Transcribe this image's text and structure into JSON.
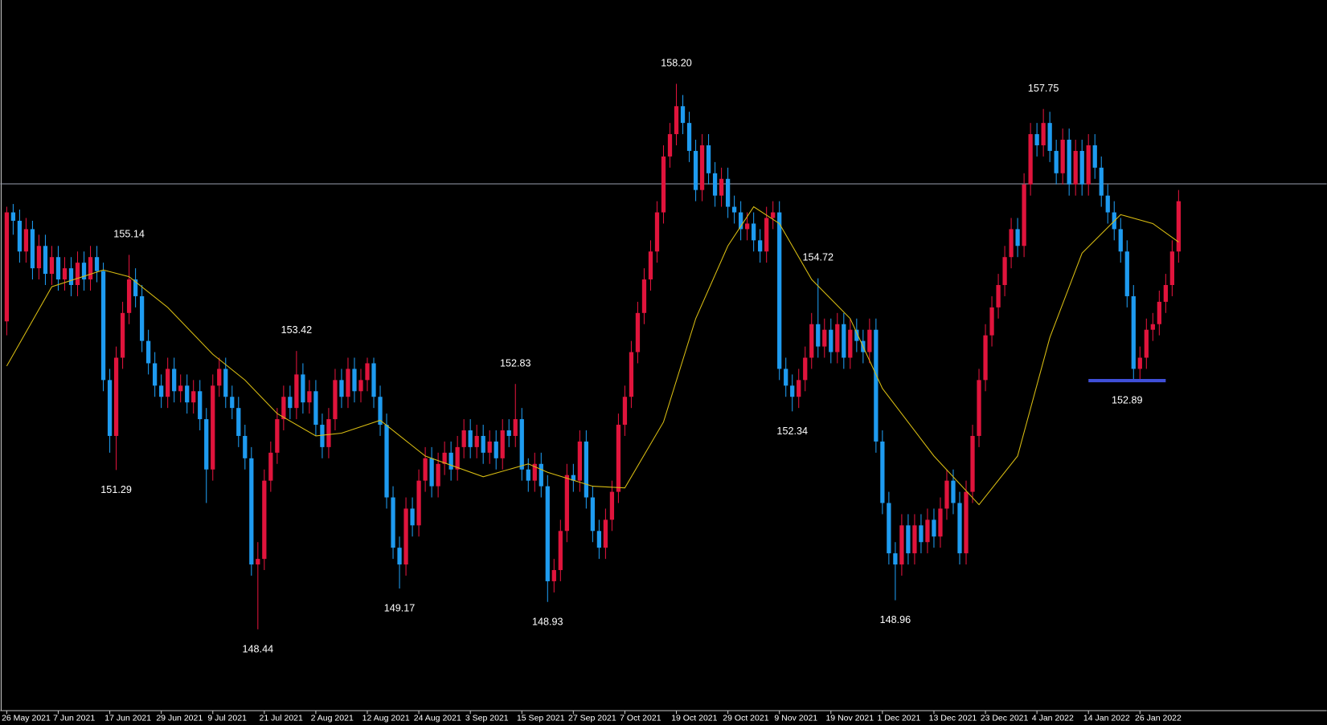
{
  "chart_data": {
    "type": "candlestick",
    "xlim": [
      -1,
      205
    ],
    "ylim": [
      147.0,
      159.7
    ],
    "xticks": [
      {
        "value": 0,
        "label": "26 May 2021"
      },
      {
        "value": 8,
        "label": "7 Jun 2021"
      },
      {
        "value": 16,
        "label": "17 Jun 2021"
      },
      {
        "value": 24,
        "label": "29 Jun 2021"
      },
      {
        "value": 32,
        "label": "9 Jul 2021"
      },
      {
        "value": 40,
        "label": "21 Jul 2021"
      },
      {
        "value": 48,
        "label": "2 Aug 2021"
      },
      {
        "value": 56,
        "label": "12 Aug 2021"
      },
      {
        "value": 64,
        "label": "24 Aug 2021"
      },
      {
        "value": 72,
        "label": "3 Sep 2021"
      },
      {
        "value": 80,
        "label": "15 Sep 2021"
      },
      {
        "value": 88,
        "label": "27 Sep 2021"
      },
      {
        "value": 96,
        "label": "7 Oct 2021"
      },
      {
        "value": 104,
        "label": "19 Oct 2021"
      },
      {
        "value": 112,
        "label": "29 Oct 2021"
      },
      {
        "value": 120,
        "label": "9 Nov 2021"
      },
      {
        "value": 128,
        "label": "19 Nov 2021"
      },
      {
        "value": 136,
        "label": "1 Dec 2021"
      },
      {
        "value": 144,
        "label": "13 Dec 2021"
      },
      {
        "value": 152,
        "label": "23 Dec 2021"
      },
      {
        "value": 160,
        "label": "4 Jan 2022"
      },
      {
        "value": 168,
        "label": "14 Jan 2022"
      },
      {
        "value": 176,
        "label": "26 Jan 2022"
      }
    ],
    "up_color": "#e0143c",
    "down_color": "#1e9bf0",
    "open": [
      153.95,
      155.9,
      155.75,
      155.2,
      155.6,
      154.9,
      155.3,
      154.8,
      155.1,
      154.7,
      154.9,
      154.6,
      155.0,
      154.7,
      155.1,
      154.85,
      152.9,
      151.9,
      153.3,
      154.1,
      154.7,
      154.4,
      153.6,
      153.2,
      152.8,
      152.6,
      153.1,
      152.7,
      152.8,
      152.5,
      152.7,
      152.2,
      151.3,
      152.8,
      153.1,
      152.6,
      152.4,
      151.9,
      151.5,
      149.6,
      149.7,
      151.1,
      151.6,
      152.2,
      152.6,
      152.4,
      153.0,
      152.5,
      152.7,
      152.1,
      151.7,
      152.2,
      152.9,
      152.6,
      153.1,
      152.7,
      152.9,
      153.2,
      152.6,
      152.1,
      150.8,
      149.9,
      149.6,
      150.6,
      150.3,
      151.1,
      151.5,
      151.0,
      151.4,
      151.6,
      151.3,
      151.7,
      152.0,
      151.7,
      151.9,
      151.6,
      151.8,
      151.5,
      152.0,
      151.9,
      152.2,
      151.3,
      151.1,
      151.4,
      151.0,
      149.3,
      149.5,
      150.2,
      151.2,
      151.1,
      151.8,
      150.8,
      150.2,
      149.9,
      150.4,
      150.9,
      152.1,
      152.6,
      153.4,
      154.1,
      154.7,
      155.2,
      155.9,
      156.9,
      157.3,
      157.8,
      157.5,
      157.0,
      156.3,
      157.1,
      156.6,
      156.2,
      156.5,
      156.0,
      155.9,
      155.6,
      155.7,
      155.4,
      155.2,
      155.8,
      155.9,
      153.1,
      152.8,
      152.6,
      152.9,
      153.3,
      153.9,
      153.5,
      153.8,
      153.4,
      153.9,
      153.3,
      153.8,
      153.6,
      153.4,
      153.8,
      151.8,
      150.7,
      149.8,
      149.6,
      150.3,
      149.8,
      150.3,
      150.0,
      150.4,
      150.1,
      150.6,
      151.1,
      150.7,
      149.8,
      150.9,
      151.9,
      152.9,
      153.7,
      154.2,
      154.6,
      155.1,
      155.6,
      155.3,
      156.4,
      157.3,
      157.1,
      157.5,
      157.0,
      156.6,
      157.2,
      156.4,
      157.0,
      156.4,
      157.1,
      156.7,
      156.2,
      155.9,
      155.6,
      155.2,
      154.4,
      153.1,
      153.3,
      153.8,
      153.9,
      154.3,
      154.6,
      155.2
    ],
    "high": [
      156.0,
      156.05,
      155.95,
      155.8,
      155.75,
      155.5,
      155.5,
      155.3,
      155.3,
      155.1,
      155.1,
      155.2,
      155.2,
      155.3,
      155.3,
      155.0,
      153.1,
      153.5,
      154.3,
      155.14,
      154.9,
      154.6,
      153.8,
      153.4,
      153.0,
      153.3,
      153.3,
      153.0,
      153.0,
      152.9,
      152.9,
      152.4,
      153.0,
      153.3,
      153.3,
      152.8,
      152.6,
      152.1,
      151.7,
      150.0,
      151.3,
      151.8,
      152.4,
      152.8,
      152.8,
      153.42,
      153.2,
      152.9,
      152.9,
      152.3,
      152.4,
      153.1,
      153.1,
      153.3,
      153.3,
      153.1,
      153.3,
      153.3,
      152.8,
      152.3,
      151.0,
      150.1,
      150.8,
      150.8,
      151.3,
      151.7,
      151.7,
      151.6,
      151.8,
      151.8,
      151.9,
      152.2,
      152.2,
      152.1,
      152.1,
      152.0,
      152.0,
      152.2,
      152.2,
      152.83,
      152.4,
      151.5,
      151.6,
      151.6,
      151.2,
      149.7,
      150.4,
      151.4,
      151.4,
      152.0,
      152.0,
      151.0,
      150.4,
      150.6,
      151.1,
      152.3,
      152.8,
      153.6,
      154.3,
      154.9,
      155.4,
      156.1,
      157.1,
      157.5,
      158.2,
      158.0,
      157.7,
      157.2,
      157.3,
      157.3,
      156.8,
      156.7,
      156.7,
      156.2,
      156.1,
      155.9,
      155.9,
      155.6,
      156.0,
      156.1,
      156.1,
      153.3,
      153.0,
      153.1,
      153.5,
      154.1,
      154.72,
      154.0,
      154.0,
      154.1,
      154.1,
      154.0,
      154.0,
      153.8,
      154.0,
      154.0,
      152.0,
      150.9,
      150.0,
      150.5,
      150.5,
      150.5,
      150.5,
      150.6,
      150.6,
      150.8,
      151.3,
      151.3,
      150.9,
      151.1,
      152.1,
      153.1,
      153.9,
      154.4,
      154.8,
      155.3,
      155.8,
      155.8,
      156.6,
      157.5,
      157.5,
      157.75,
      157.7,
      157.2,
      157.4,
      157.4,
      157.2,
      157.2,
      157.3,
      157.3,
      156.9,
      156.4,
      156.1,
      155.8,
      155.4,
      154.6,
      153.5,
      154.0,
      154.1,
      154.5,
      154.8,
      155.4,
      156.3
    ],
    "low": [
      153.7,
      155.5,
      155.0,
      155.0,
      154.7,
      154.7,
      154.6,
      154.6,
      154.5,
      154.5,
      154.4,
      154.4,
      154.5,
      154.5,
      154.65,
      152.7,
      151.6,
      151.29,
      153.1,
      153.9,
      154.2,
      153.4,
      153.0,
      152.6,
      152.4,
      152.4,
      152.5,
      152.5,
      152.3,
      152.3,
      152.0,
      150.7,
      151.1,
      152.6,
      152.4,
      152.2,
      151.7,
      151.3,
      149.4,
      148.44,
      149.5,
      150.9,
      151.4,
      152.0,
      152.2,
      152.2,
      152.3,
      152.3,
      151.9,
      151.5,
      151.5,
      152.0,
      152.4,
      152.4,
      152.5,
      152.5,
      152.7,
      152.4,
      151.9,
      150.6,
      149.7,
      149.17,
      149.4,
      150.1,
      150.1,
      150.9,
      150.8,
      150.8,
      151.2,
      151.1,
      151.1,
      151.5,
      151.5,
      151.5,
      151.4,
      151.4,
      151.3,
      151.3,
      151.7,
      151.7,
      151.1,
      150.9,
      150.9,
      150.8,
      148.93,
      149.1,
      149.3,
      150.0,
      150.9,
      150.9,
      150.6,
      150.0,
      149.7,
      149.7,
      150.2,
      150.7,
      151.9,
      152.4,
      153.2,
      153.9,
      154.5,
      155.0,
      155.7,
      156.7,
      157.1,
      157.3,
      156.8,
      156.1,
      156.1,
      156.4,
      156.0,
      156.0,
      155.8,
      155.7,
      155.4,
      155.4,
      155.2,
      155.0,
      155.0,
      155.6,
      152.9,
      152.6,
      152.34,
      152.4,
      152.7,
      153.1,
      153.3,
      153.3,
      153.2,
      153.2,
      153.1,
      153.1,
      153.4,
      153.2,
      153.2,
      151.6,
      150.5,
      149.6,
      148.96,
      149.4,
      149.6,
      149.6,
      149.8,
      149.8,
      149.9,
      149.9,
      150.4,
      150.5,
      149.6,
      149.6,
      150.7,
      151.7,
      152.7,
      153.5,
      154.0,
      154.4,
      154.9,
      155.1,
      155.1,
      156.2,
      156.9,
      156.9,
      156.8,
      156.4,
      156.4,
      156.2,
      156.2,
      156.2,
      156.2,
      156.5,
      156.0,
      155.7,
      155.4,
      155.0,
      154.2,
      152.9,
      152.89,
      153.1,
      153.6,
      153.7,
      154.1,
      154.4,
      155.0
    ],
    "close": [
      155.9,
      155.75,
      155.2,
      155.6,
      154.9,
      155.3,
      154.8,
      155.1,
      154.7,
      154.9,
      154.6,
      155.0,
      154.7,
      155.1,
      154.85,
      152.9,
      151.9,
      153.3,
      154.1,
      154.7,
      154.4,
      153.6,
      153.2,
      152.8,
      152.6,
      153.1,
      152.7,
      152.8,
      152.5,
      152.7,
      152.2,
      151.3,
      152.8,
      153.1,
      152.6,
      152.4,
      151.9,
      151.5,
      149.6,
      149.7,
      151.1,
      151.6,
      152.2,
      152.6,
      152.4,
      153.0,
      152.5,
      152.7,
      152.1,
      151.7,
      152.2,
      152.9,
      152.6,
      153.1,
      152.7,
      152.9,
      153.2,
      152.6,
      152.1,
      150.8,
      149.9,
      149.6,
      150.6,
      150.3,
      151.1,
      151.5,
      151.0,
      151.4,
      151.6,
      151.3,
      151.7,
      152.0,
      151.7,
      151.9,
      151.6,
      151.8,
      151.5,
      152.0,
      151.9,
      152.2,
      151.3,
      151.1,
      151.4,
      151.0,
      149.3,
      149.5,
      150.2,
      151.2,
      151.1,
      151.8,
      150.8,
      150.2,
      149.9,
      150.4,
      150.9,
      152.1,
      152.6,
      153.4,
      154.1,
      154.7,
      155.2,
      155.9,
      156.9,
      157.3,
      157.8,
      157.5,
      157.0,
      156.3,
      157.1,
      156.6,
      156.2,
      156.5,
      156.0,
      155.9,
      155.6,
      155.7,
      155.4,
      155.2,
      155.8,
      155.9,
      153.1,
      152.8,
      152.6,
      152.9,
      153.3,
      153.9,
      153.5,
      153.8,
      153.4,
      153.9,
      153.3,
      153.8,
      153.6,
      153.4,
      153.8,
      151.8,
      150.7,
      149.8,
      149.6,
      150.3,
      149.8,
      150.3,
      150.0,
      150.4,
      150.1,
      150.6,
      151.1,
      150.7,
      149.8,
      150.9,
      151.9,
      152.9,
      153.7,
      154.2,
      154.6,
      155.1,
      155.6,
      155.3,
      156.4,
      157.3,
      157.1,
      157.5,
      157.0,
      156.6,
      157.2,
      156.4,
      157.0,
      156.4,
      157.1,
      156.7,
      156.2,
      155.9,
      155.6,
      155.2,
      154.4,
      153.1,
      153.3,
      153.8,
      153.9,
      154.3,
      154.6,
      155.2,
      156.1
    ],
    "moving_average": {
      "color": "#d9bd12",
      "x": [
        0,
        7,
        15,
        19,
        25,
        32,
        37,
        42,
        48,
        52,
        58,
        65,
        74,
        81,
        84,
        91,
        96,
        102,
        107,
        112,
        116,
        120,
        125,
        131,
        136,
        144,
        151,
        157,
        162,
        167,
        173,
        178,
        182
      ],
      "values": [
        153.15,
        154.57,
        154.87,
        154.75,
        154.2,
        153.36,
        152.9,
        152.3,
        151.9,
        151.95,
        152.18,
        151.54,
        151.17,
        151.4,
        151.25,
        151.0,
        150.97,
        152.15,
        154.0,
        155.3,
        156.0,
        155.7,
        154.7,
        154.0,
        152.75,
        151.54,
        150.67,
        151.54,
        153.66,
        155.17,
        155.86,
        155.7,
        155.37
      ]
    },
    "hline": {
      "value": 156.41,
      "color": "#9aa0b0"
    },
    "support": {
      "value": 152.89,
      "x": [
        168,
        180
      ],
      "color": "#3f4fd8"
    },
    "annotations": [
      {
        "x": 19,
        "value": 155.14,
        "label": "155.14",
        "position": "above"
      },
      {
        "x": 17,
        "value": 151.29,
        "label": "151.29",
        "position": "below"
      },
      {
        "x": 45,
        "value": 153.42,
        "label": "153.42",
        "position": "above"
      },
      {
        "x": 39,
        "value": 148.44,
        "label": "148.44",
        "position": "below"
      },
      {
        "x": 61,
        "value": 149.17,
        "label": "149.17",
        "position": "below"
      },
      {
        "x": 79,
        "value": 152.83,
        "label": "152.83",
        "position": "above"
      },
      {
        "x": 84,
        "value": 148.93,
        "label": "148.93",
        "position": "below"
      },
      {
        "x": 104,
        "value": 158.2,
        "label": "158.20",
        "position": "above"
      },
      {
        "x": 122,
        "value": 152.34,
        "label": "152.34",
        "position": "below"
      },
      {
        "x": 126,
        "value": 154.72,
        "label": "154.72",
        "position": "above"
      },
      {
        "x": 138,
        "value": 148.96,
        "label": "148.96",
        "position": "below"
      },
      {
        "x": 161,
        "value": 157.75,
        "label": "157.75",
        "position": "above"
      },
      {
        "x": 174,
        "value": 152.89,
        "label": "152.89",
        "position": "below"
      }
    ]
  }
}
